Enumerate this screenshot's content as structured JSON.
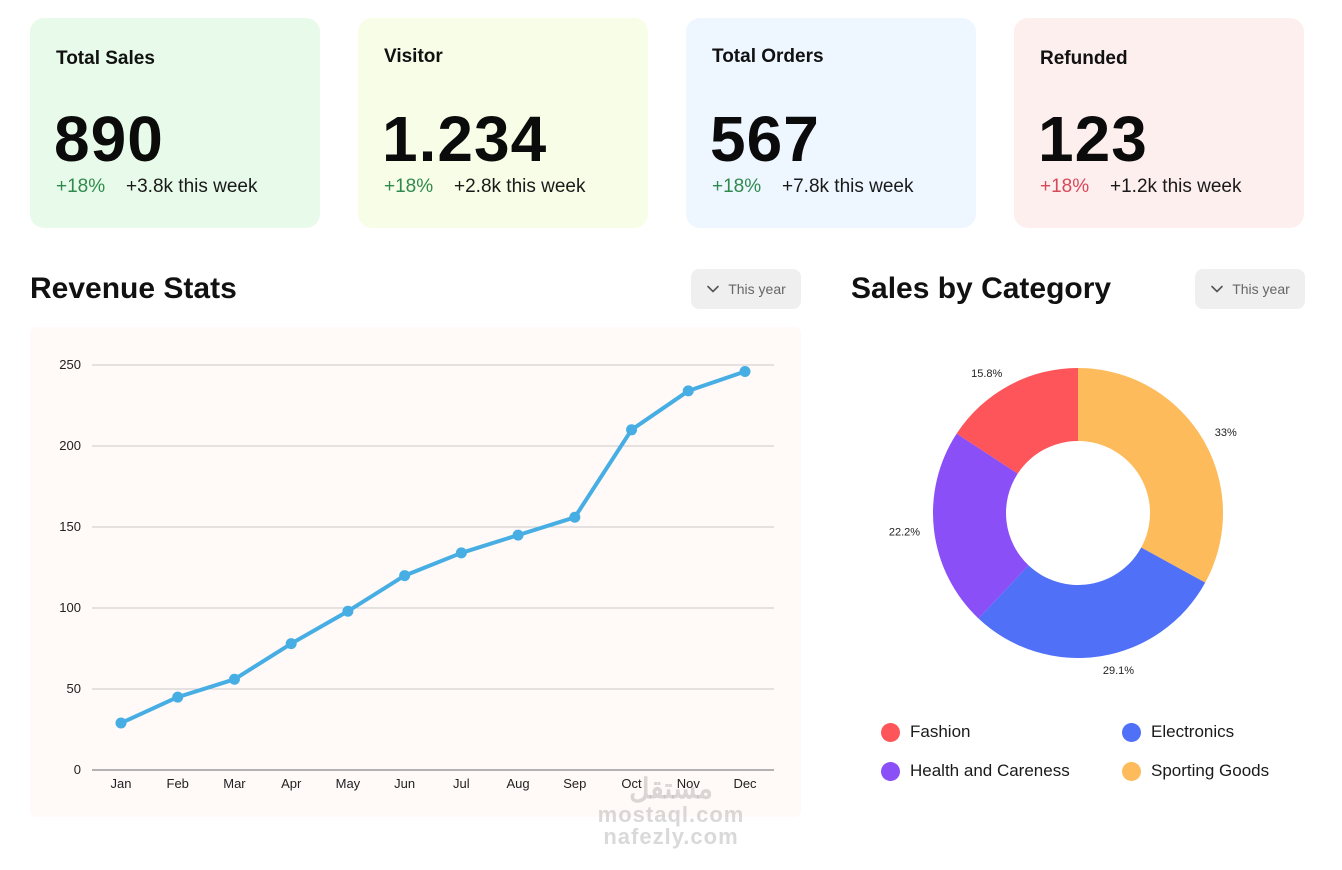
{
  "cards": [
    {
      "title": "Total Sales",
      "value": "890",
      "change": "+18%",
      "trend": "up",
      "week": "+3.8k this week",
      "bg": "#e8fbea"
    },
    {
      "title": "Visitor",
      "value": "1.234",
      "change": "+18%",
      "trend": "up",
      "week": "+2.8k this week",
      "bg": "#f7fde6"
    },
    {
      "title": "Total Orders",
      "value": "567",
      "change": "+18%",
      "trend": "up",
      "week": "+7.8k this week",
      "bg": "#eef6ff"
    },
    {
      "title": "Refunded",
      "value": "123",
      "change": "+18%",
      "trend": "down",
      "week": "+1.2k this week",
      "bg": "#fdefee"
    }
  ],
  "revenue": {
    "title": "Revenue Stats",
    "filter": "This year"
  },
  "category": {
    "title": "Sales by Category",
    "filter": "This year"
  },
  "chart_data": [
    {
      "type": "line",
      "categories": [
        "Jan",
        "Feb",
        "Mar",
        "Apr",
        "May",
        "Jun",
        "Jul",
        "Aug",
        "Sep",
        "Oct",
        "Nov",
        "Dec"
      ],
      "values": [
        29,
        45,
        56,
        78,
        98,
        120,
        134,
        145,
        156,
        210,
        234,
        246
      ],
      "ylim": [
        0,
        250
      ],
      "yticks": [
        0,
        50,
        100,
        150,
        200,
        250
      ],
      "grid": true,
      "color": "#47aee4"
    },
    {
      "type": "pie",
      "donut": true,
      "categories": [
        "Sporting Goods",
        "Electronics",
        "Health and Careness",
        "Fashion"
      ],
      "values": [
        33,
        29.1,
        22.2,
        15.8
      ],
      "labels": [
        "33%",
        "29.1%",
        "22.2%",
        "15.8%"
      ],
      "colors": [
        "#fdbb5c",
        "#4f70f7",
        "#8b4ff7",
        "#fd5559"
      ]
    }
  ],
  "legend": [
    {
      "label": "Fashion",
      "color": "#fd5559"
    },
    {
      "label": "Electronics",
      "color": "#4f70f7"
    },
    {
      "label": "Health and Careness",
      "color": "#8b4ff7"
    },
    {
      "label": "Sporting Goods",
      "color": "#fdbb5c"
    }
  ],
  "watermark": {
    "logo": "مستقل",
    "line1": "mostaql.com",
    "line2": "nafezly.com"
  }
}
